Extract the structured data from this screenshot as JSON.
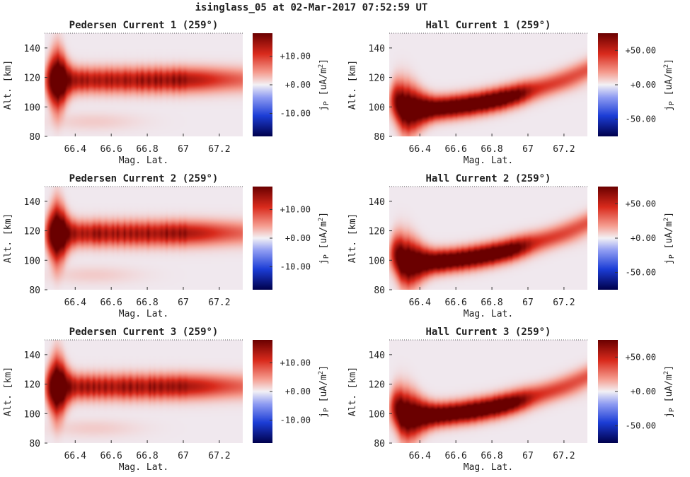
{
  "suptitle": "isinglass_05 at 02-Mar-2017 07:52:59 UT",
  "chart_data": [
    {
      "type": "heatmap",
      "title": "Pedersen Current 1 (259°)",
      "xlabel": "Mag. Lat.",
      "ylabel": "Alt. [km]",
      "xlim": [
        66.23,
        67.33
      ],
      "ylim": [
        80,
        150
      ],
      "x_ticks": [
        "66.4",
        "66.6",
        "66.8",
        "67",
        "67.2"
      ],
      "x_tick_values": [
        66.4,
        66.6,
        66.8,
        67.0,
        67.2
      ],
      "y_ticks": [
        "80",
        "100",
        "120",
        "140"
      ],
      "y_tick_values": [
        80,
        100,
        120,
        140
      ],
      "colorbar": {
        "label": "j_P [uA/m^2]",
        "range": [
          -18,
          18
        ],
        "ticks": [
          "+10.00",
          "+0.00",
          "-10.00"
        ],
        "tick_values": [
          10,
          0,
          -10
        ],
        "colormap": "seismic"
      },
      "feature": {
        "kind": "pedersen",
        "peak_alt_km": 118,
        "variant": 1
      }
    },
    {
      "type": "heatmap",
      "title": "Hall Current 1 (259°)",
      "xlabel": "Mag. Lat.",
      "ylabel": "Alt. [km]",
      "xlim": [
        66.23,
        67.33
      ],
      "ylim": [
        80,
        150
      ],
      "x_ticks": [
        "66.4",
        "66.6",
        "66.8",
        "67",
        "67.2"
      ],
      "x_tick_values": [
        66.4,
        66.6,
        66.8,
        67.0,
        67.2
      ],
      "y_ticks": [
        "80",
        "100",
        "120",
        "140"
      ],
      "y_tick_values": [
        80,
        100,
        120,
        140
      ],
      "colorbar": {
        "label": "j_P [uA/m^2]",
        "range": [
          -75,
          75
        ],
        "ticks": [
          "+50.00",
          "+0.00",
          "-50.00"
        ],
        "tick_values": [
          50,
          0,
          -50
        ],
        "colormap": "seismic"
      },
      "feature": {
        "kind": "hall",
        "peak_alt_km": 100,
        "variant": 1
      }
    },
    {
      "type": "heatmap",
      "title": "Pedersen Current 2 (259°)",
      "xlabel": "Mag. Lat.",
      "ylabel": "Alt. [km]",
      "xlim": [
        66.23,
        67.33
      ],
      "ylim": [
        80,
        150
      ],
      "x_ticks": [
        "66.4",
        "66.6",
        "66.8",
        "67",
        "67.2"
      ],
      "x_tick_values": [
        66.4,
        66.6,
        66.8,
        67.0,
        67.2
      ],
      "y_ticks": [
        "80",
        "100",
        "120",
        "140"
      ],
      "y_tick_values": [
        80,
        100,
        120,
        140
      ],
      "colorbar": {
        "label": "j_P [uA/m^2]",
        "range": [
          -18,
          18
        ],
        "ticks": [
          "+10.00",
          "+0.00",
          "-10.00"
        ],
        "tick_values": [
          10,
          0,
          -10
        ],
        "colormap": "seismic"
      },
      "feature": {
        "kind": "pedersen",
        "peak_alt_km": 118,
        "variant": 2
      }
    },
    {
      "type": "heatmap",
      "title": "Hall Current 2 (259°)",
      "xlabel": "Mag. Lat.",
      "ylabel": "Alt. [km]",
      "xlim": [
        66.23,
        67.33
      ],
      "ylim": [
        80,
        150
      ],
      "x_ticks": [
        "66.4",
        "66.6",
        "66.8",
        "67",
        "67.2"
      ],
      "x_tick_values": [
        66.4,
        66.6,
        66.8,
        67.0,
        67.2
      ],
      "y_ticks": [
        "80",
        "100",
        "120",
        "140"
      ],
      "y_tick_values": [
        80,
        100,
        120,
        140
      ],
      "colorbar": {
        "label": "j_P [uA/m^2]",
        "range": [
          -75,
          75
        ],
        "ticks": [
          "+50.00",
          "+0.00",
          "-50.00"
        ],
        "tick_values": [
          50,
          0,
          -50
        ],
        "colormap": "seismic"
      },
      "feature": {
        "kind": "hall",
        "peak_alt_km": 100,
        "variant": 2
      }
    },
    {
      "type": "heatmap",
      "title": "Pedersen Current 3 (259°)",
      "xlabel": "Mag. Lat.",
      "ylabel": "Alt. [km]",
      "xlim": [
        66.23,
        67.33
      ],
      "ylim": [
        80,
        150
      ],
      "x_ticks": [
        "66.4",
        "66.6",
        "66.8",
        "67",
        "67.2"
      ],
      "x_tick_values": [
        66.4,
        66.6,
        66.8,
        67.0,
        67.2
      ],
      "y_ticks": [
        "80",
        "100",
        "120",
        "140"
      ],
      "y_tick_values": [
        80,
        100,
        120,
        140
      ],
      "colorbar": {
        "label": "j_P [uA/m^2]",
        "range": [
          -18,
          18
        ],
        "ticks": [
          "+10.00",
          "+0.00",
          "-10.00"
        ],
        "tick_values": [
          10,
          0,
          -10
        ],
        "colormap": "seismic"
      },
      "feature": {
        "kind": "pedersen",
        "peak_alt_km": 118,
        "variant": 3
      }
    },
    {
      "type": "heatmap",
      "title": "Hall Current 3 (259°)",
      "xlabel": "Mag. Lat.",
      "ylabel": "Alt. [km]",
      "xlim": [
        66.23,
        67.33
      ],
      "ylim": [
        80,
        150
      ],
      "x_ticks": [
        "66.4",
        "66.6",
        "66.8",
        "67",
        "67.2"
      ],
      "x_tick_values": [
        66.4,
        66.6,
        66.8,
        67.0,
        67.2
      ],
      "y_ticks": [
        "80",
        "100",
        "120",
        "140"
      ],
      "y_tick_values": [
        80,
        100,
        120,
        140
      ],
      "colorbar": {
        "label": "j_P [uA/m^2]",
        "range": [
          -75,
          75
        ],
        "ticks": [
          "+50.00",
          "+0.00",
          "-50.00"
        ],
        "tick_values": [
          50,
          0,
          -50
        ],
        "colormap": "seismic"
      },
      "feature": {
        "kind": "hall",
        "peak_alt_km": 100,
        "variant": 3
      }
    }
  ]
}
